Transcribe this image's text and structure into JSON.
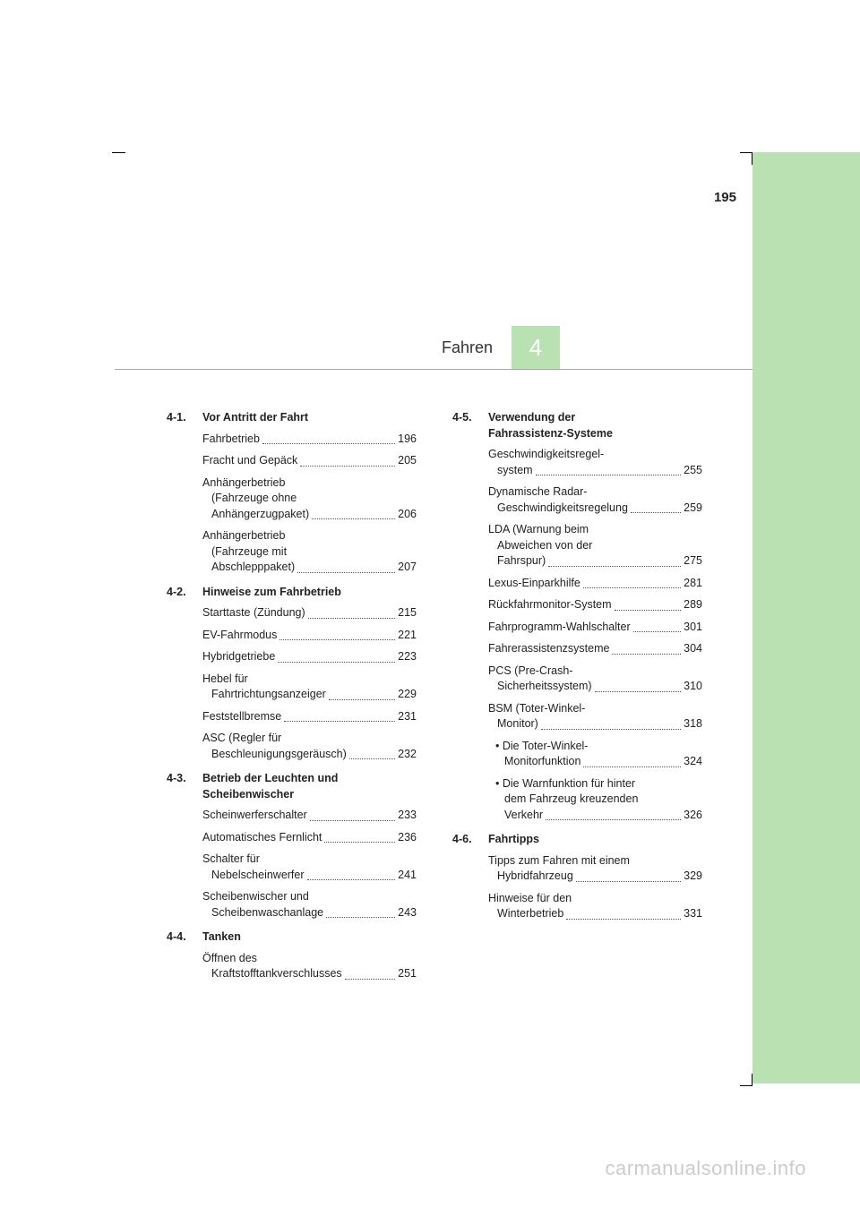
{
  "page_number": "195",
  "chapter_title": "Fahren",
  "chapter_number": "4",
  "watermark": "carmanualsonline.info",
  "colors": {
    "accent": "#b9e1b1",
    "text": "#222222",
    "watermark": "#cccccc"
  },
  "sections": [
    {
      "num": "4-1.",
      "title": "Vor Antritt der Fahrt",
      "entries": [
        {
          "label": "Fahrbetrieb",
          "page": "196"
        },
        {
          "label": "Fracht und Gepäck",
          "page": "205"
        },
        {
          "lines": [
            "Anhängerbetrieb",
            "(Fahrzeuge ohne"
          ],
          "last": "Anhängerzugpaket)",
          "page": "206"
        },
        {
          "lines": [
            "Anhängerbetrieb",
            "(Fahrzeuge mit"
          ],
          "last": "Abschlepppaket)",
          "page": "207"
        }
      ]
    },
    {
      "num": "4-2.",
      "title": "Hinweise zum Fahrbetrieb",
      "entries": [
        {
          "label": "Starttaste (Zündung)",
          "page": "215"
        },
        {
          "label": "EV-Fahrmodus",
          "page": "221"
        },
        {
          "label": "Hybridgetriebe",
          "page": "223"
        },
        {
          "lines": [
            "Hebel für"
          ],
          "last": "Fahrtrichtungsanzeiger",
          "page": "229"
        },
        {
          "label": "Feststellbremse",
          "page": "231"
        },
        {
          "lines": [
            "ASC (Regler für"
          ],
          "last": "Beschleunigungsgeräusch)",
          "page": "232"
        }
      ]
    },
    {
      "num": "4-3.",
      "title_lines": [
        "Betrieb der Leuchten und",
        "Scheibenwischer"
      ],
      "entries": [
        {
          "label": "Scheinwerferschalter",
          "page": "233"
        },
        {
          "label": "Automatisches Fernlicht",
          "page": "236"
        },
        {
          "lines": [
            "Schalter für"
          ],
          "last": "Nebelscheinwerfer",
          "page": "241"
        },
        {
          "lines": [
            "Scheibenwischer und"
          ],
          "last": "Scheibenwaschanlage",
          "page": "243"
        }
      ]
    },
    {
      "num": "4-4.",
      "title": "Tanken",
      "entries": [
        {
          "lines": [
            "Öffnen des"
          ],
          "last": "Kraftstofftankverschlusses",
          "page": "251"
        }
      ]
    },
    {
      "num": "4-5.",
      "title_lines": [
        "Verwendung der",
        "Fahrassistenz-Systeme"
      ],
      "entries": [
        {
          "lines": [
            "Geschwindigkeitsregel-"
          ],
          "last": "system",
          "page": "255"
        },
        {
          "lines": [
            "Dynamische Radar-"
          ],
          "last": "Geschwindigkeitsregelung",
          "page": "259"
        },
        {
          "lines": [
            "LDA (Warnung beim",
            "Abweichen von der"
          ],
          "last": "Fahrspur)",
          "page": "275"
        },
        {
          "label": "Lexus-Einparkhilfe",
          "page": "281"
        },
        {
          "label": "Rückfahrmonitor-System",
          "page": "289"
        },
        {
          "label": "Fahrprogramm-Wahlschalter",
          "page": "301"
        },
        {
          "label": "Fahrerassistenzsysteme",
          "page": "304"
        },
        {
          "lines": [
            "PCS (Pre-Crash-"
          ],
          "last": "Sicherheitssystem)",
          "page": "310"
        },
        {
          "lines": [
            "BSM (Toter-Winkel-"
          ],
          "last": "Monitor)",
          "page": "318"
        }
      ],
      "bullets": [
        {
          "lines": [
            "• Die Toter-Winkel-"
          ],
          "last": "Monitorfunktion",
          "page": "324"
        },
        {
          "lines": [
            "• Die Warnfunktion für hinter",
            "dem Fahrzeug kreuzenden"
          ],
          "last": "Verkehr",
          "page": "326"
        }
      ]
    },
    {
      "num": "4-6.",
      "title": "Fahrtipps",
      "entries": [
        {
          "lines": [
            "Tipps zum Fahren mit einem"
          ],
          "last": "Hybridfahrzeug",
          "page": "329"
        },
        {
          "lines": [
            "Hinweise für den"
          ],
          "last": "Winterbetrieb",
          "page": "331"
        }
      ]
    }
  ]
}
